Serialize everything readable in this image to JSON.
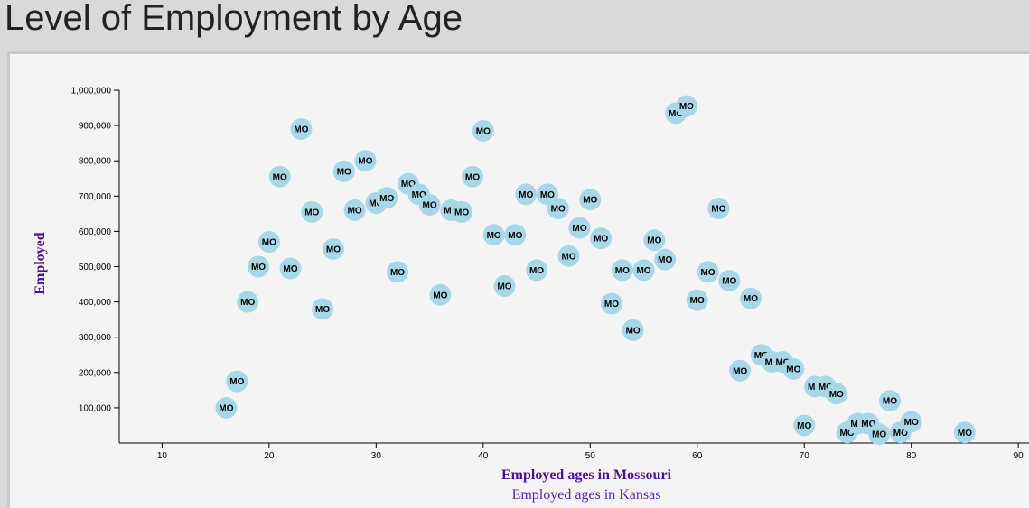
{
  "page": {
    "title": "Level of Employment by Age"
  },
  "chart_data": {
    "type": "scatter",
    "title": "Level of Employment by Age",
    "xlabel": "Employed ages in Mossouri",
    "xlabel_alt": "Employed ages in Kansas",
    "ylabel": "Employed",
    "xlim": [
      6,
      91
    ],
    "ylim": [
      0,
      1000000
    ],
    "x_ticks": [
      10,
      20,
      30,
      40,
      50,
      60,
      70,
      80,
      90
    ],
    "y_ticks": [
      100000,
      200000,
      300000,
      400000,
      500000,
      600000,
      700000,
      800000,
      900000,
      1000000
    ],
    "y_tick_labels": [
      "100,000",
      "200,000",
      "300,000",
      "400,000",
      "500,000",
      "600,000",
      "700,000",
      "800,000",
      "900,000",
      "1,000,000"
    ],
    "grid": false,
    "marker_color": "#a8d8e8",
    "point_label": "MO",
    "points": [
      {
        "x": 16,
        "y": 100000
      },
      {
        "x": 17,
        "y": 175000
      },
      {
        "x": 18,
        "y": 400000
      },
      {
        "x": 19,
        "y": 500000
      },
      {
        "x": 20,
        "y": 570000
      },
      {
        "x": 21,
        "y": 755000
      },
      {
        "x": 22,
        "y": 495000
      },
      {
        "x": 23,
        "y": 890000
      },
      {
        "x": 24,
        "y": 655000
      },
      {
        "x": 25,
        "y": 380000
      },
      {
        "x": 26,
        "y": 550000
      },
      {
        "x": 27,
        "y": 770000
      },
      {
        "x": 28,
        "y": 660000
      },
      {
        "x": 29,
        "y": 800000
      },
      {
        "x": 30,
        "y": 680000
      },
      {
        "x": 31,
        "y": 695000
      },
      {
        "x": 32,
        "y": 485000
      },
      {
        "x": 33,
        "y": 735000
      },
      {
        "x": 34,
        "y": 705000
      },
      {
        "x": 35,
        "y": 675000
      },
      {
        "x": 36,
        "y": 420000
      },
      {
        "x": 37,
        "y": 660000
      },
      {
        "x": 38,
        "y": 655000
      },
      {
        "x": 39,
        "y": 755000
      },
      {
        "x": 40,
        "y": 885000
      },
      {
        "x": 41,
        "y": 590000
      },
      {
        "x": 42,
        "y": 445000
      },
      {
        "x": 43,
        "y": 590000
      },
      {
        "x": 44,
        "y": 705000
      },
      {
        "x": 45,
        "y": 490000
      },
      {
        "x": 46,
        "y": 705000
      },
      {
        "x": 47,
        "y": 665000
      },
      {
        "x": 48,
        "y": 530000
      },
      {
        "x": 49,
        "y": 610000
      },
      {
        "x": 50,
        "y": 690000
      },
      {
        "x": 51,
        "y": 580000
      },
      {
        "x": 52,
        "y": 395000
      },
      {
        "x": 53,
        "y": 490000
      },
      {
        "x": 54,
        "y": 320000
      },
      {
        "x": 55,
        "y": 490000
      },
      {
        "x": 56,
        "y": 575000
      },
      {
        "x": 57,
        "y": 520000
      },
      {
        "x": 58,
        "y": 935000
      },
      {
        "x": 59,
        "y": 955000
      },
      {
        "x": 60,
        "y": 405000
      },
      {
        "x": 61,
        "y": 485000
      },
      {
        "x": 62,
        "y": 665000
      },
      {
        "x": 63,
        "y": 460000
      },
      {
        "x": 64,
        "y": 205000
      },
      {
        "x": 65,
        "y": 410000
      },
      {
        "x": 66,
        "y": 250000
      },
      {
        "x": 67,
        "y": 230000
      },
      {
        "x": 68,
        "y": 230000
      },
      {
        "x": 69,
        "y": 210000
      },
      {
        "x": 70,
        "y": 50000
      },
      {
        "x": 71,
        "y": 160000
      },
      {
        "x": 72,
        "y": 160000
      },
      {
        "x": 73,
        "y": 140000
      },
      {
        "x": 74,
        "y": 30000
      },
      {
        "x": 75,
        "y": 55000
      },
      {
        "x": 76,
        "y": 55000
      },
      {
        "x": 77,
        "y": 25000
      },
      {
        "x": 78,
        "y": 120000
      },
      {
        "x": 79,
        "y": 30000
      },
      {
        "x": 80,
        "y": 60000
      },
      {
        "x": 85,
        "y": 30000
      }
    ]
  }
}
